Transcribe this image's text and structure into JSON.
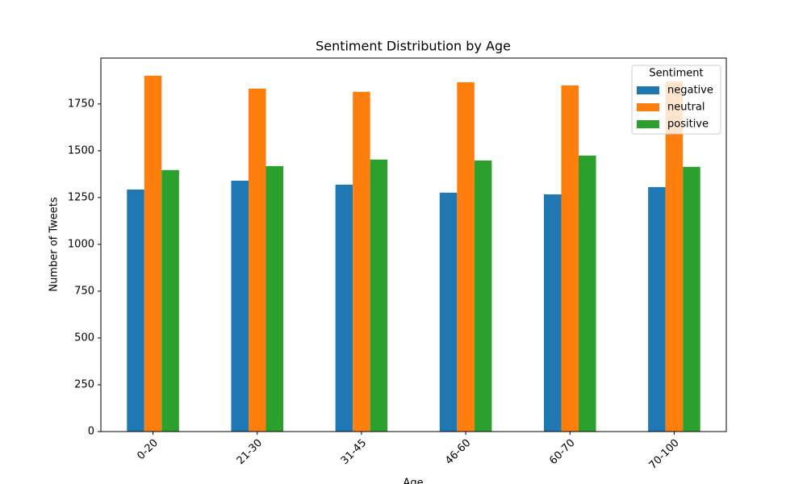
{
  "chart_data": {
    "type": "bar",
    "title": "Sentiment Distribution by Age",
    "x_label": "Age",
    "y_label": "Number of Tweets",
    "categories": [
      "0-20",
      "21-30",
      "31-45",
      "46-60",
      "60-70",
      "70-100"
    ],
    "series": [
      {
        "name": "negative",
        "color": "#1f77b4",
        "values": [
          1293,
          1340,
          1319,
          1276,
          1267,
          1306
        ]
      },
      {
        "name": "neutral",
        "color": "#ff7f0e",
        "values": [
          1901,
          1832,
          1815,
          1866,
          1849,
          1871
        ]
      },
      {
        "name": "positive",
        "color": "#2ca02c",
        "values": [
          1397,
          1418,
          1453,
          1448,
          1474,
          1414
        ]
      }
    ],
    "ylim": [
      0,
      1995
    ],
    "yticks": [
      0,
      250,
      500,
      750,
      1000,
      1250,
      1500,
      1750
    ],
    "legend_title": "Sentiment",
    "legend_position": "upper right",
    "grid": false
  }
}
